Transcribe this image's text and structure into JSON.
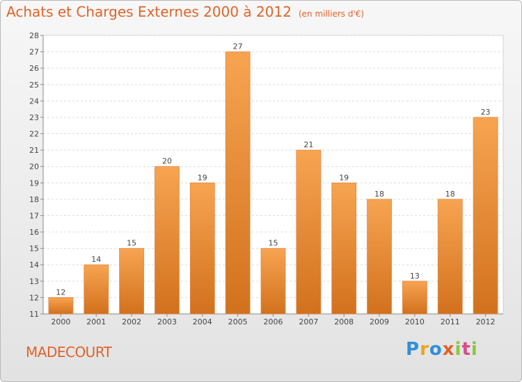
{
  "header": {
    "title": "Achats et Charges Externes 2000 à 2012",
    "subtitle": "(en milliers d'€)"
  },
  "footer": {
    "commune": "MADECOURT",
    "logo_letters": [
      "P",
      "r",
      "o",
      "x",
      "i",
      "t",
      "i"
    ]
  },
  "colors": {
    "accent": "#e0632a",
    "bar_top": "#f7a451",
    "bar_bottom": "#d2711d"
  },
  "chart_data": {
    "type": "bar",
    "title": "Achats et Charges Externes 2000 à 2012",
    "subtitle": "(en milliers d'€)",
    "categories": [
      "2000",
      "2001",
      "2002",
      "2003",
      "2004",
      "2005",
      "2006",
      "2007",
      "2008",
      "2009",
      "2010",
      "2011",
      "2012"
    ],
    "values": [
      12,
      14,
      15,
      20,
      19,
      27,
      15,
      21,
      19,
      18,
      13,
      18,
      23
    ],
    "ylim": [
      11,
      28
    ],
    "yticks": [
      11,
      12,
      13,
      14,
      15,
      16,
      17,
      18,
      19,
      20,
      21,
      22,
      23,
      24,
      25,
      26,
      27,
      28
    ],
    "grid": true,
    "data_labels": true,
    "xlabel": "",
    "ylabel": ""
  }
}
